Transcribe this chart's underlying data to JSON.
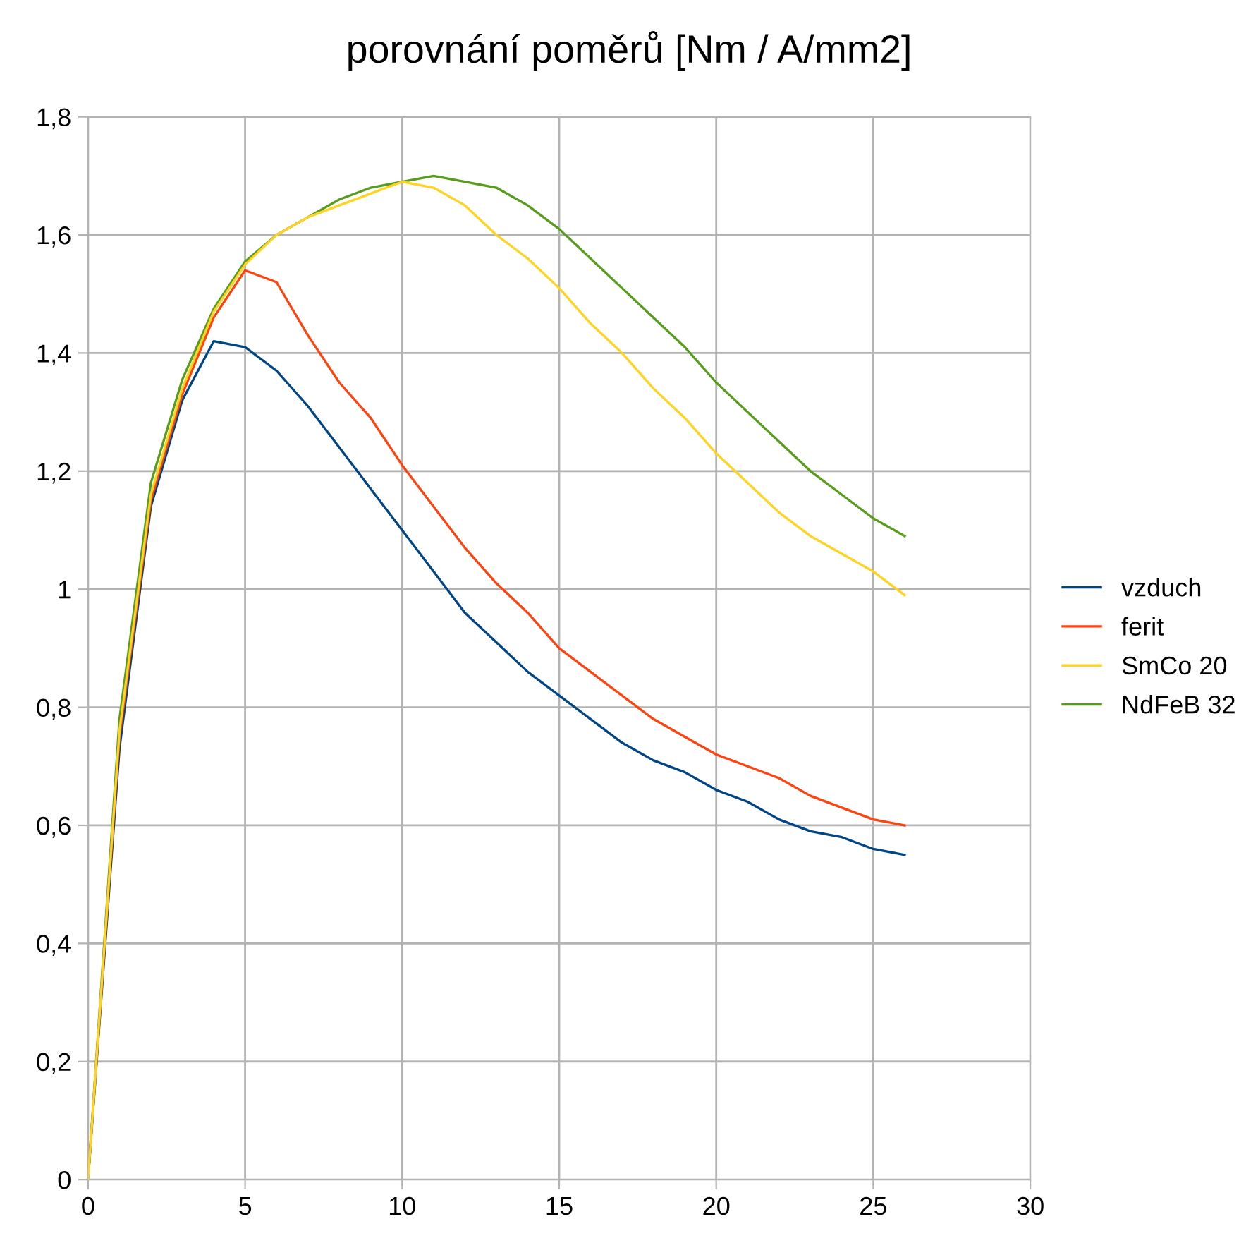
{
  "chart_data": {
    "type": "line",
    "title": "porovnání poměrů [Nm / A/mm2]",
    "x": [
      0,
      1,
      2,
      3,
      4,
      5,
      6,
      7,
      8,
      9,
      10,
      11,
      12,
      13,
      14,
      15,
      16,
      17,
      18,
      19,
      20,
      21,
      22,
      23,
      24,
      25,
      26
    ],
    "series": [
      {
        "name": "vzduch",
        "color": "#004586",
        "values": [
          0,
          0.73,
          1.14,
          1.32,
          1.42,
          1.41,
          1.37,
          1.31,
          1.24,
          1.17,
          1.1,
          1.03,
          0.96,
          0.91,
          0.86,
          0.82,
          0.78,
          0.74,
          0.71,
          0.69,
          0.66,
          0.64,
          0.61,
          0.59,
          0.58,
          0.56,
          0.55
        ]
      },
      {
        "name": "ferit",
        "color": "#ff420e",
        "values": [
          0,
          0.75,
          1.15,
          1.33,
          1.46,
          1.54,
          1.52,
          1.43,
          1.35,
          1.29,
          1.21,
          1.14,
          1.07,
          1.01,
          0.96,
          0.9,
          0.86,
          0.82,
          0.78,
          0.75,
          0.72,
          0.7,
          0.68,
          0.65,
          0.63,
          0.61,
          0.6
        ]
      },
      {
        "name": "SmCo 20",
        "color": "#ffd320",
        "values": [
          0,
          0.76,
          1.16,
          1.34,
          1.47,
          1.55,
          1.6,
          1.63,
          1.65,
          1.67,
          1.69,
          1.68,
          1.65,
          1.6,
          1.56,
          1.51,
          1.45,
          1.4,
          1.34,
          1.29,
          1.23,
          1.18,
          1.13,
          1.09,
          1.06,
          1.03,
          0.99
        ]
      },
      {
        "name": "NdFeB 32",
        "color": "#579d1c",
        "values": [
          0,
          0.78,
          1.18,
          1.355,
          1.475,
          1.555,
          1.6,
          1.63,
          1.66,
          1.68,
          1.69,
          1.7,
          1.69,
          1.68,
          1.65,
          1.61,
          1.56,
          1.51,
          1.46,
          1.41,
          1.35,
          1.3,
          1.25,
          1.2,
          1.16,
          1.12,
          1.09
        ]
      }
    ],
    "xlim": [
      0,
      30
    ],
    "xticks": [
      0,
      5,
      10,
      15,
      20,
      25,
      30
    ],
    "ylim": [
      0,
      1.8
    ],
    "yticks": [
      0,
      {
        "value": 0.2,
        "label": "0,2"
      },
      {
        "value": 0.4,
        "label": "0,4"
      },
      {
        "value": 0.6,
        "label": "0,6"
      },
      {
        "value": 0.8,
        "label": "0,8"
      },
      1,
      {
        "value": 1.2,
        "label": "1,2"
      },
      {
        "value": 1.4,
        "label": "1,4"
      },
      {
        "value": 1.6,
        "label": "1,6"
      },
      {
        "value": 1.8,
        "label": "1,8"
      }
    ],
    "grid": true,
    "legend": "right",
    "marker": "none",
    "line_style": "solid"
  }
}
